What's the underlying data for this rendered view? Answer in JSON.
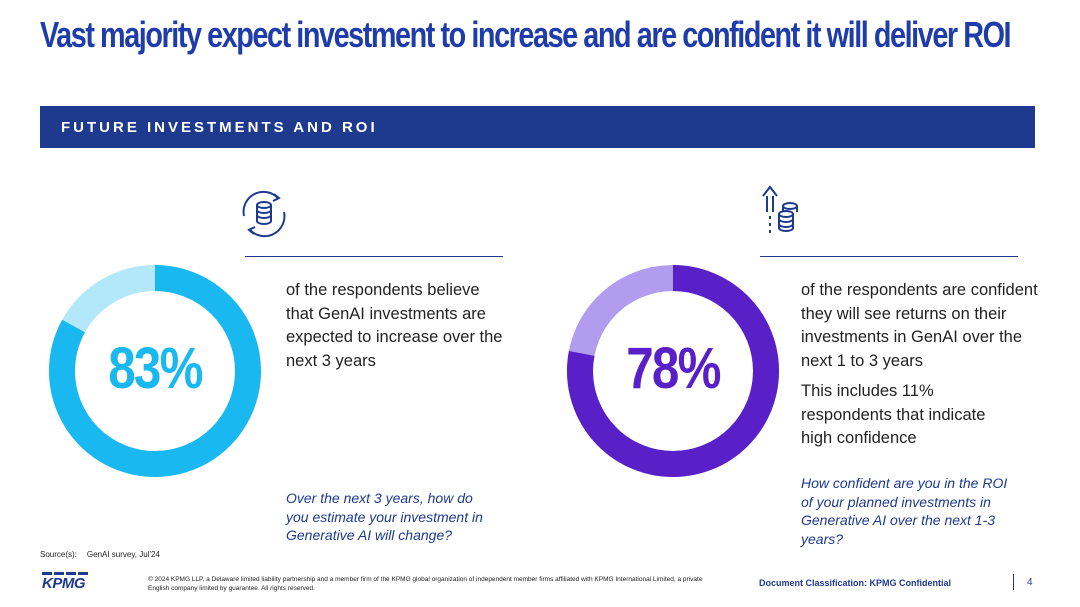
{
  "title": "Vast majority expect investment to increase and are confident it will deliver ROI",
  "section_banner": "FUTURE INVESTMENTS AND ROI",
  "left_card": {
    "icon": "coins-cycle-icon",
    "value": 83,
    "percentage": "83%",
    "description": "of the respondents believe that GenAI investments are expected to increase over the next 3 years",
    "question": "Over the next 3 years, how do you estimate your investment in Generative AI will change?",
    "colors": {
      "fill": "#1ab8f0",
      "rest": "#b3e8fa",
      "text": "#1ab8f0"
    }
  },
  "right_card": {
    "icon": "growth-coins-icon",
    "value": 78,
    "percentage": "78%",
    "description": "of the respondents are confident they will see returns on their investments in GenAI over the next 1 to 3 years",
    "note": "This includes 11% respondents that indicate high confidence",
    "question": "How confident are you in the ROI of your planned investments in Generative AI over the next 1-3 years?",
    "colors": {
      "fill": "#5a20c8",
      "rest": "#b19cf0",
      "text": "#5a20c8"
    }
  },
  "footer": {
    "source_label": "Source(s):",
    "source_value": "GenAI survey, Jul'24",
    "logo": "KPMG",
    "copyright": "© 2024 KPMG LLP, a Delaware limited liability partnership and a member firm of the KPMG global organization of independent member firms affiliated with KPMG International Limited, a private English company limited by guarantee. All rights reserved.",
    "classification": "Document Classification: KPMG Confidential",
    "page_number": "4"
  }
}
